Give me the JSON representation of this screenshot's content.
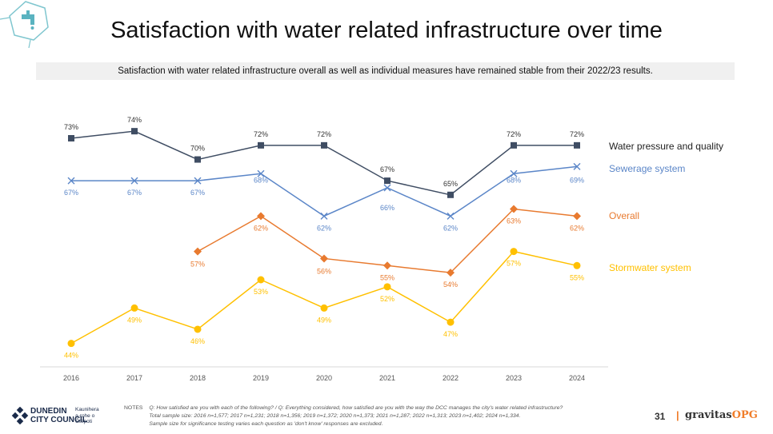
{
  "page": {
    "title": "Satisfaction with water related infrastructure over time",
    "subtitle": "Satisfaction with water related infrastructure overall as well as individual measures have remained stable from their 2022/23 results.",
    "page_number": "31",
    "brand_name": "gravitas",
    "brand_suffix": "OPG",
    "council_line1": "DUNEDIN",
    "council_line2": "CITY COUNCIL",
    "council_maori_1": "Kaunihera",
    "council_maori_2": "a-rohe o",
    "council_maori_3": "Ōtepoti",
    "notes_tag": "NOTES",
    "notes_lines": [
      "Q: How satisfied are you with each of the following?  /  Q: Everything considered, how satisfied are you with the way the DCC manages the city's water related infrastructure?",
      "Total sample size: 2016 n=1,577; 2017 n=1,231; 2018 n=1,356; 2019 n=1,372; 2020 n=1,373; 2021 n=1,287; 2022 n=1,313; 2023 n=1,402; 2024 n=1,334.",
      "Sample size for significance testing varies each question as 'don't know' responses are excluded."
    ]
  },
  "colors": {
    "water_pressure": "#3f4d63",
    "sewerage": "#5b86c8",
    "overall": "#e87a2f",
    "stormwater": "#ffc000",
    "accent": "#f07d2a"
  },
  "chart_data": {
    "type": "line",
    "categories": [
      "2016",
      "2017",
      "2018",
      "2019",
      "2020",
      "2021",
      "2022",
      "2023",
      "2024"
    ],
    "series": [
      {
        "name": "Water pressure and quality",
        "key": "water_pressure",
        "marker": "square",
        "values": [
          73,
          74,
          70,
          72,
          72,
          67,
          65,
          72,
          72
        ],
        "labels": [
          "73%",
          "74%",
          "70%",
          "72%",
          "72%",
          "67%",
          "65%",
          "72%",
          "72%"
        ]
      },
      {
        "name": "Sewerage system",
        "key": "sewerage",
        "marker": "x",
        "values": [
          67,
          67,
          67,
          68,
          62,
          66,
          62,
          68,
          69
        ],
        "labels": [
          "67%",
          "67%",
          "67%",
          "68%",
          "62%",
          "66%",
          "62%",
          "68%",
          "69%"
        ]
      },
      {
        "name": "Overall",
        "key": "overall",
        "marker": "diamond",
        "values": [
          null,
          null,
          57,
          62,
          56,
          55,
          54,
          63,
          62
        ],
        "labels": [
          null,
          null,
          "57%",
          "62%",
          "56%",
          "55%",
          "54%",
          "63%",
          "62%"
        ]
      },
      {
        "name": "Stormwater system",
        "key": "stormwater",
        "marker": "circle",
        "values": [
          44,
          49,
          46,
          53,
          49,
          52,
          47,
          57,
          55
        ],
        "labels": [
          "44%",
          "49%",
          "46%",
          "53%",
          "49%",
          "52%",
          "47%",
          "57%",
          "55%"
        ]
      }
    ],
    "legend": "right",
    "grid": false
  }
}
